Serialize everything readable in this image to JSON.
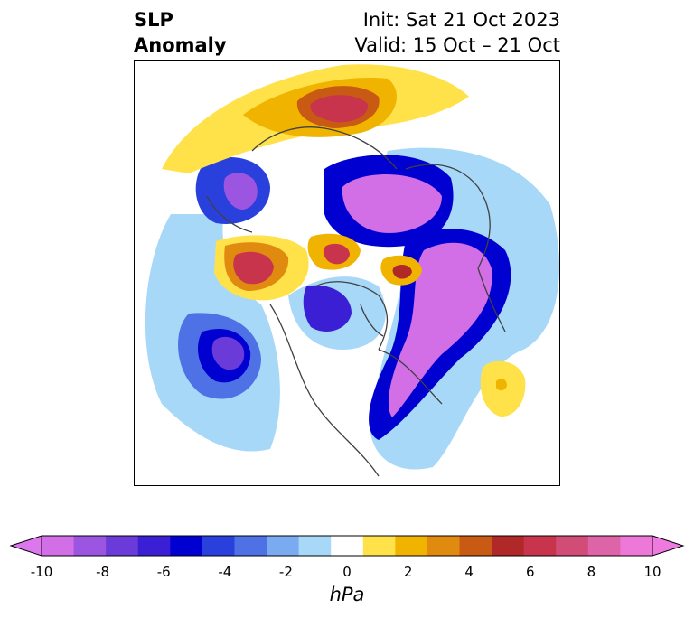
{
  "title": {
    "field_line1": "SLP",
    "field_line2": "Anomaly",
    "init": "Init: Sat 21 Oct 2023",
    "valid": "Valid: 15 Oct – 21 Oct"
  },
  "colorbar": {
    "unit": "hPa",
    "ticks": [
      "-10",
      "-8",
      "-6",
      "-4",
      "-2",
      "0",
      "2",
      "4",
      "6",
      "8",
      "10"
    ],
    "colors": [
      "#d36fe6",
      "#9c55e0",
      "#6a3bd8",
      "#3a1fd4",
      "#0000d0",
      "#2a40dc",
      "#4e72e6",
      "#7aaaf0",
      "#a8d8f8",
      "#ffffff",
      "#ffe14a",
      "#f0b400",
      "#e08a10",
      "#c85a14",
      "#b02828",
      "#c8344c",
      "#d24c78",
      "#de64a8",
      "#ee78d8"
    ],
    "min_color": "#dd77ee",
    "max_color": "#ee7ae0"
  }
}
